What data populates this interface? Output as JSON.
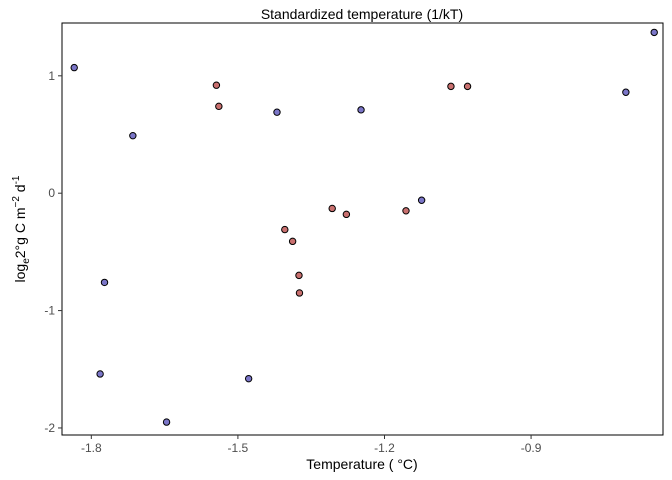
{
  "chart_data": {
    "type": "scatter",
    "top_axis_title": "Standardized temperature (1/kT)",
    "xlabel": "Temperature ( °C)",
    "ylabel": {
      "parts": [
        "log",
        "e",
        "2°g C m",
        "−2",
        " d",
        "-1"
      ]
    },
    "xlim": [
      -1.86,
      -0.63
    ],
    "ylim": [
      -2.06,
      1.45
    ],
    "x_ticks": [
      -1.8,
      -1.5,
      -1.2,
      -0.9
    ],
    "x_tick_labels": [
      "-1.8",
      "-1.5",
      "-1.2",
      "-0.9"
    ],
    "y_ticks": [
      -2,
      -1,
      0,
      1
    ],
    "y_tick_labels": [
      "-2",
      "-1",
      "0",
      "1"
    ],
    "grid": false,
    "colors": {
      "blue": "#7b76c8",
      "red": "#c9706f"
    },
    "points": [
      {
        "x": -1.835,
        "y": 1.07,
        "color": "blue"
      },
      {
        "x": -1.715,
        "y": 0.49,
        "color": "blue"
      },
      {
        "x": -1.773,
        "y": -0.76,
        "color": "blue"
      },
      {
        "x": -1.782,
        "y": -1.54,
        "color": "blue"
      },
      {
        "x": -1.646,
        "y": -1.95,
        "color": "blue"
      },
      {
        "x": -1.544,
        "y": 0.92,
        "color": "red"
      },
      {
        "x": -1.539,
        "y": 0.74,
        "color": "red"
      },
      {
        "x": -1.478,
        "y": -1.58,
        "color": "blue"
      },
      {
        "x": -1.42,
        "y": 0.69,
        "color": "blue"
      },
      {
        "x": -1.404,
        "y": -0.31,
        "color": "red"
      },
      {
        "x": -1.388,
        "y": -0.41,
        "color": "red"
      },
      {
        "x": -1.375,
        "y": -0.7,
        "color": "red"
      },
      {
        "x": -1.374,
        "y": -0.85,
        "color": "red"
      },
      {
        "x": -1.307,
        "y": -0.13,
        "color": "red"
      },
      {
        "x": -1.278,
        "y": -0.18,
        "color": "red"
      },
      {
        "x": -1.248,
        "y": 0.71,
        "color": "blue"
      },
      {
        "x": -1.156,
        "y": -0.15,
        "color": "red"
      },
      {
        "x": -1.124,
        "y": -0.06,
        "color": "blue"
      },
      {
        "x": -1.064,
        "y": 0.91,
        "color": "red"
      },
      {
        "x": -1.03,
        "y": 0.91,
        "color": "red"
      },
      {
        "x": -0.706,
        "y": 0.86,
        "color": "blue"
      },
      {
        "x": -0.648,
        "y": 1.37,
        "color": "blue"
      }
    ]
  }
}
